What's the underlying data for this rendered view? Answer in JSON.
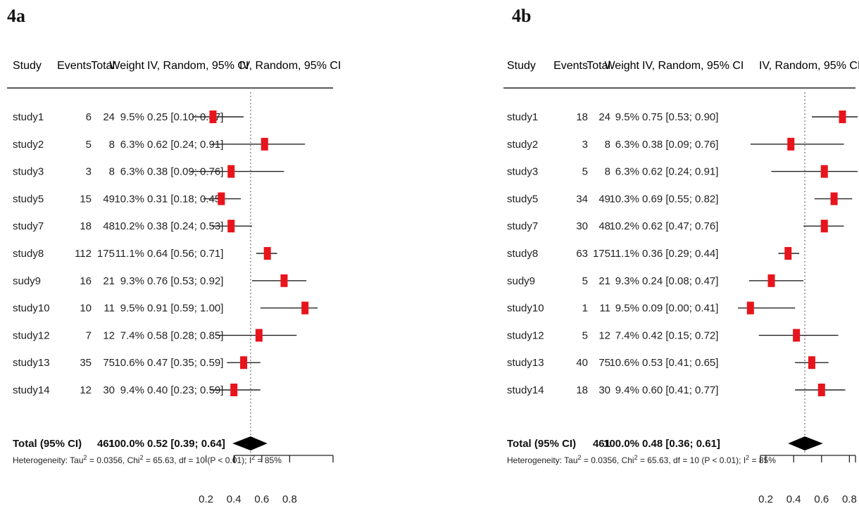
{
  "chart_data": [
    {
      "type": "forest",
      "panel_label": "4a",
      "columns": [
        "Study",
        "Events",
        "Total",
        "Weight",
        "IV, Random, 95% CI",
        "IV, Random, 95% CI"
      ],
      "studies": [
        {
          "study": "study1",
          "events": "6",
          "total": "24",
          "weight": "9.5%",
          "ci_text": "0.25 [0.10; 0.47]",
          "est": 0.25,
          "lo": 0.1,
          "hi": 0.47
        },
        {
          "study": "study2",
          "events": "5",
          "total": "8",
          "weight": "6.3%",
          "ci_text": "0.62 [0.24; 0.91]",
          "est": 0.62,
          "lo": 0.24,
          "hi": 0.91
        },
        {
          "study": "study3",
          "events": "3",
          "total": "8",
          "weight": "6.3%",
          "ci_text": "0.38 [0.09; 0.76]",
          "est": 0.38,
          "lo": 0.09,
          "hi": 0.76
        },
        {
          "study": "study5",
          "events": "15",
          "total": "49",
          "weight": "10.3%",
          "ci_text": "0.31 [0.18; 0.45]",
          "est": 0.31,
          "lo": 0.18,
          "hi": 0.45
        },
        {
          "study": "study7",
          "events": "18",
          "total": "48",
          "weight": "10.2%",
          "ci_text": "0.38 [0.24; 0.53]",
          "est": 0.38,
          "lo": 0.24,
          "hi": 0.53
        },
        {
          "study": "study8",
          "events": "112",
          "total": "175",
          "weight": "11.1%",
          "ci_text": "0.64 [0.56; 0.71]",
          "est": 0.64,
          "lo": 0.56,
          "hi": 0.71
        },
        {
          "study": "sudy9",
          "events": "16",
          "total": "21",
          "weight": "9.3%",
          "ci_text": "0.76 [0.53; 0.92]",
          "est": 0.76,
          "lo": 0.53,
          "hi": 0.92
        },
        {
          "study": "study10",
          "events": "10",
          "total": "11",
          "weight": "9.5%",
          "ci_text": "0.91 [0.59; 1.00]",
          "est": 0.91,
          "lo": 0.59,
          "hi": 1.0
        },
        {
          "study": "study12",
          "events": "7",
          "total": "12",
          "weight": "7.4%",
          "ci_text": "0.58 [0.28; 0.85]",
          "est": 0.58,
          "lo": 0.28,
          "hi": 0.85
        },
        {
          "study": "study13",
          "events": "35",
          "total": "75",
          "weight": "10.6%",
          "ci_text": "0.47 [0.35; 0.59]",
          "est": 0.47,
          "lo": 0.35,
          "hi": 0.59
        },
        {
          "study": "study14",
          "events": "12",
          "total": "30",
          "weight": "9.4%",
          "ci_text": "0.40 [0.23; 0.59]",
          "est": 0.4,
          "lo": 0.23,
          "hi": 0.59
        }
      ],
      "total": {
        "label": "Total (95% CI)",
        "total": "461",
        "weight": "100.0%",
        "ci_text": "0.52 [0.39; 0.64]",
        "est": 0.52,
        "lo": 0.39,
        "hi": 0.64
      },
      "heterogeneity": {
        "prefix": "Heterogeneity: Tau",
        "tau2": "= 0.0356, Chi",
        "chi2": "= 65.63, df = 10 (P < 0.01); I",
        "i2": "= 85%",
        "sup": "2"
      },
      "x_ticks": [
        0.2,
        0.4,
        0.6,
        0.8
      ],
      "x_tick_labels": [
        "0.2",
        "0.4",
        "0.6",
        "0.8"
      ],
      "ref_line": 0.52,
      "xlim": [
        0.0,
        1.1
      ],
      "marker_color": "#e8141c"
    },
    {
      "type": "forest",
      "panel_label": "4b",
      "columns": [
        "Study",
        "Events",
        "Total",
        "Weight",
        "IV, Random, 95% CI",
        "IV, Random, 95% CI"
      ],
      "studies": [
        {
          "study": "study1",
          "events": "18",
          "total": "24",
          "weight": "9.5%",
          "ci_text": "0.75 [0.53; 0.90]",
          "est": 0.75,
          "lo": 0.53,
          "hi": 0.9
        },
        {
          "study": "study2",
          "events": "3",
          "total": "8",
          "weight": "6.3%",
          "ci_text": "0.38 [0.09; 0.76]",
          "est": 0.38,
          "lo": 0.09,
          "hi": 0.76
        },
        {
          "study": "study3",
          "events": "5",
          "total": "8",
          "weight": "6.3%",
          "ci_text": "0.62 [0.24; 0.91]",
          "est": 0.62,
          "lo": 0.24,
          "hi": 0.91
        },
        {
          "study": "study5",
          "events": "34",
          "total": "49",
          "weight": "10.3%",
          "ci_text": "0.69 [0.55; 0.82]",
          "est": 0.69,
          "lo": 0.55,
          "hi": 0.82
        },
        {
          "study": "study7",
          "events": "30",
          "total": "48",
          "weight": "10.2%",
          "ci_text": "0.62 [0.47; 0.76]",
          "est": 0.62,
          "lo": 0.47,
          "hi": 0.76
        },
        {
          "study": "study8",
          "events": "63",
          "total": "175",
          "weight": "11.1%",
          "ci_text": "0.36 [0.29; 0.44]",
          "est": 0.36,
          "lo": 0.29,
          "hi": 0.44
        },
        {
          "study": "sudy9",
          "events": "5",
          "total": "21",
          "weight": "9.3%",
          "ci_text": "0.24 [0.08; 0.47]",
          "est": 0.24,
          "lo": 0.08,
          "hi": 0.47
        },
        {
          "study": "study10",
          "events": "1",
          "total": "11",
          "weight": "9.5%",
          "ci_text": "0.09 [0.00; 0.41]",
          "est": 0.09,
          "lo": 0.0,
          "hi": 0.41
        },
        {
          "study": "study12",
          "events": "5",
          "total": "12",
          "weight": "7.4%",
          "ci_text": "0.42 [0.15; 0.72]",
          "est": 0.42,
          "lo": 0.15,
          "hi": 0.72
        },
        {
          "study": "study13",
          "events": "40",
          "total": "75",
          "weight": "10.6%",
          "ci_text": "0.53 [0.41; 0.65]",
          "est": 0.53,
          "lo": 0.41,
          "hi": 0.65
        },
        {
          "study": "study14",
          "events": "18",
          "total": "30",
          "weight": "9.4%",
          "ci_text": "0.60 [0.41; 0.77]",
          "est": 0.6,
          "lo": 0.41,
          "hi": 0.77
        }
      ],
      "total": {
        "label": "Total (95% CI)",
        "total": "461",
        "weight": "100.0%",
        "ci_text": "0.48 [0.36; 0.61]",
        "est": 0.48,
        "lo": 0.36,
        "hi": 0.61
      },
      "heterogeneity": {
        "prefix": "Heterogeneity: Tau",
        "tau2": "= 0.0356, Chi",
        "chi2": "= 65.63, df = 10 (P < 0.01); I",
        "i2": "= 85%",
        "sup": "2"
      },
      "x_ticks": [
        0.2,
        0.4,
        0.6,
        0.8
      ],
      "x_tick_labels": [
        "0.2",
        "0.4",
        "0.6",
        "0.8"
      ],
      "ref_line": 0.48,
      "xlim": [
        0.0,
        1.1
      ],
      "marker_color": "#e8141c"
    }
  ]
}
